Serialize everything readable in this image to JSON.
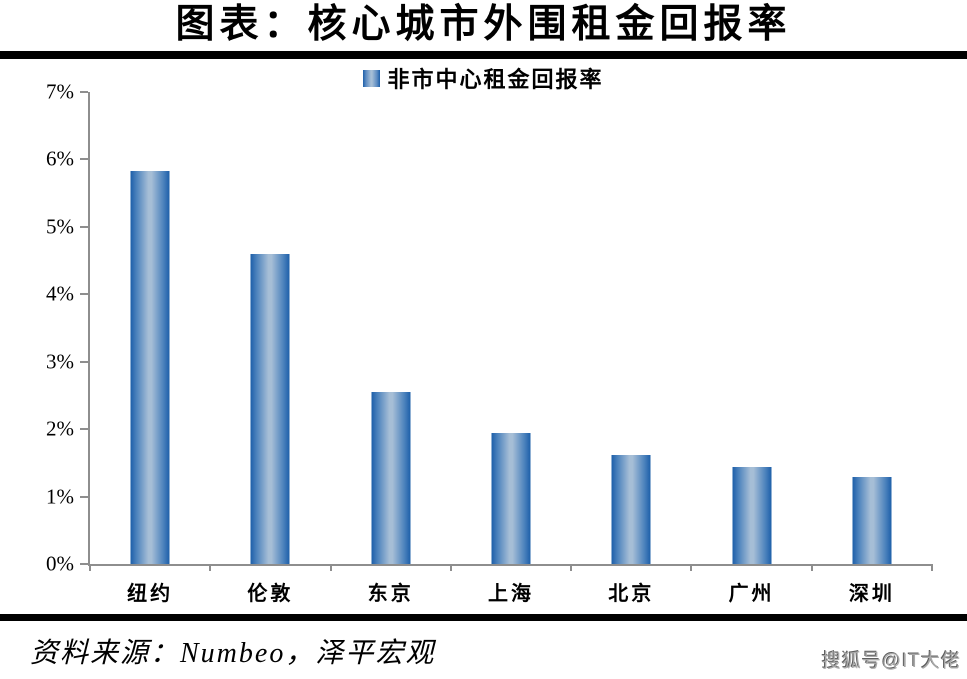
{
  "header": {
    "title": "图表：核心城市外围租金回报率"
  },
  "footer": {
    "source": "资料来源：Numbeo，泽平宏观",
    "watermark": "搜狐号@IT大佬"
  },
  "chart_data": {
    "type": "bar",
    "title": "图表：核心城市外围租金回报率",
    "categories": [
      "纽约",
      "伦敦",
      "东京",
      "上海",
      "北京",
      "广州",
      "深圳"
    ],
    "category_slugs": [
      "new-york",
      "london",
      "tokyo",
      "shanghai",
      "beijing",
      "guangzhou",
      "shenzhen"
    ],
    "series": [
      {
        "name": "非市中心租金回报率",
        "values": [
          5.83,
          4.6,
          2.55,
          1.95,
          1.62,
          1.44,
          1.29
        ]
      }
    ],
    "unit": "%",
    "xlabel": "",
    "ylabel": "",
    "ylim": [
      0,
      7
    ],
    "ytick_step": 1,
    "ytick_labels": [
      "0%",
      "1%",
      "2%",
      "3%",
      "4%",
      "5%",
      "6%",
      "7%"
    ],
    "grid": false,
    "legend_position": "top-center",
    "colors": {
      "bar_edge": "#1d5fa9",
      "bar_mid": "#a6bed6",
      "axis": "#8e8e8e",
      "rule": "#000000"
    }
  }
}
